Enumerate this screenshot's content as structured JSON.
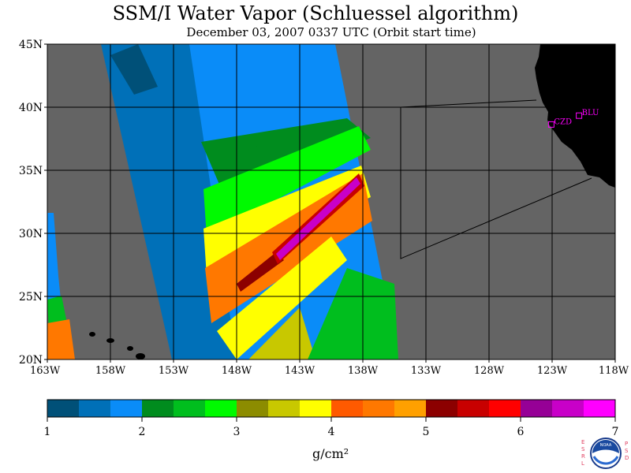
{
  "title": "SSM/I Water Vapor (Schluessel algorithm)",
  "subtitle": "December 03, 2007  0337 UTC  (Orbit start time)",
  "map": {
    "lon_range": [
      -163,
      -118
    ],
    "lat_range": [
      20,
      45
    ],
    "lat_ticks": [
      "20N",
      "25N",
      "30N",
      "35N",
      "40N",
      "45N"
    ],
    "lon_ticks": [
      "163W",
      "158W",
      "153W",
      "148W",
      "143W",
      "138W",
      "133W",
      "128W",
      "123W",
      "118W"
    ],
    "stations": [
      {
        "label": "CZD",
        "lon": -123.1,
        "lat": 38.6
      },
      {
        "label": "BLU",
        "lon": -120.9,
        "lat": 39.3
      }
    ],
    "colors": {
      "ocean_nodata": "#646464",
      "land": "#000000",
      "grid": "#000000",
      "station": "#ff00ff"
    }
  },
  "colorbar": {
    "unit": "g/cm²",
    "tick_labels": [
      "1",
      "2",
      "3",
      "4",
      "5",
      "6",
      "7"
    ],
    "colors": [
      "#005078",
      "#0070b8",
      "#0a8cf8",
      "#008c1e",
      "#00be1e",
      "#00fa00",
      "#8c8c00",
      "#c8c800",
      "#ffff00",
      "#ff5a00",
      "#ff7800",
      "#ffa000",
      "#8c0000",
      "#c80000",
      "#ff0000",
      "#960096",
      "#c800c8",
      "#ff00ff"
    ]
  },
  "logo": {
    "left_text": "ESRL",
    "right_text": "PSD",
    "center_text": "NOAA"
  }
}
